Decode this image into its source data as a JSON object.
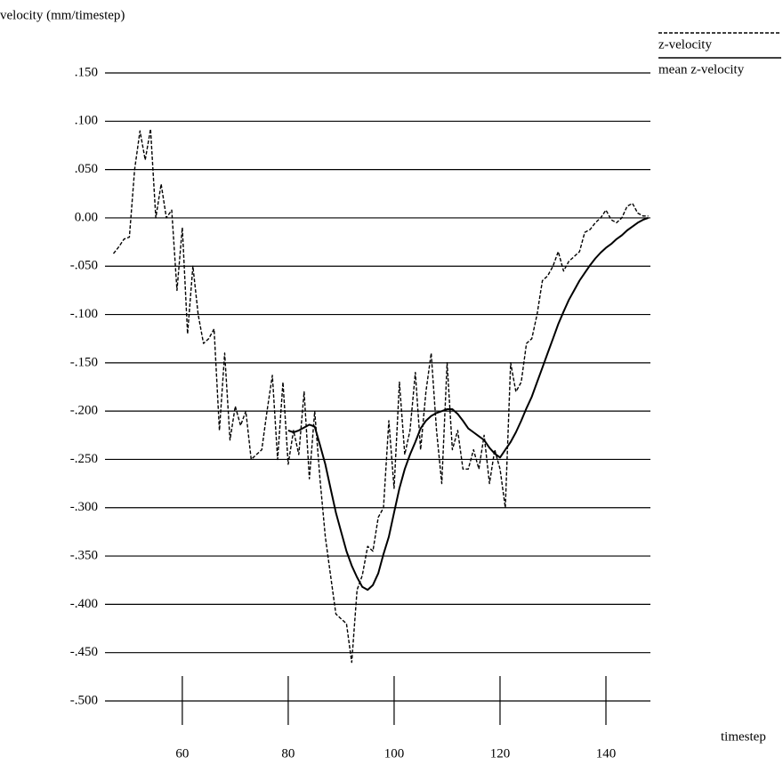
{
  "chart_data": {
    "type": "line",
    "y_label": "velocity (mm/timestep)",
    "x_label": "timestep",
    "legend": "upper right",
    "grid": true,
    "xlim": [
      45.4,
      148.4
    ],
    "ylim": [
      -0.5,
      0.15
    ],
    "xticks": [
      60,
      80,
      100,
      120,
      140
    ],
    "yticks": [
      {
        "value": 0.15,
        "label": ".150"
      },
      {
        "value": 0.1,
        "label": ".100"
      },
      {
        "value": 0.05,
        "label": ".050"
      },
      {
        "value": 0,
        "label": "0.00"
      },
      {
        "value": -0.05,
        "label": "-.050"
      },
      {
        "value": -0.1,
        "label": "-.100"
      },
      {
        "value": -0.15,
        "label": "-.150"
      },
      {
        "value": -0.2,
        "label": "-.200"
      },
      {
        "value": -0.25,
        "label": "-.250"
      },
      {
        "value": -0.3,
        "label": "-.300"
      },
      {
        "value": -0.35,
        "label": "-.350"
      },
      {
        "value": -0.4,
        "label": "-.400"
      },
      {
        "value": -0.45,
        "label": "-.450"
      },
      {
        "value": -0.5,
        "label": "-.500"
      }
    ],
    "x": [
      47,
      48,
      49,
      50,
      51,
      52,
      53,
      54,
      55,
      56,
      57,
      58,
      59,
      60,
      61,
      62,
      63,
      64,
      65,
      66,
      67,
      68,
      69,
      70,
      71,
      72,
      73,
      74,
      75,
      76,
      77,
      78,
      79,
      80,
      81,
      82,
      83,
      84,
      85,
      86,
      87,
      88,
      89,
      90,
      91,
      92,
      93,
      94,
      95,
      96,
      97,
      98,
      99,
      100,
      101,
      102,
      103,
      104,
      105,
      106,
      107,
      108,
      109,
      110,
      111,
      112,
      113,
      114,
      115,
      116,
      117,
      118,
      119,
      120,
      121,
      122,
      123,
      124,
      125,
      126,
      127,
      128,
      129,
      130,
      131,
      132,
      133,
      134,
      135,
      136,
      137,
      138,
      139,
      140,
      141,
      142,
      143,
      144,
      145,
      146,
      147,
      148
    ],
    "series": [
      {
        "name": "z-velocity",
        "color": "#000000",
        "linestyle": "dashed",
        "values": [
          -0.037,
          -0.03,
          -0.022,
          -0.02,
          0.05,
          0.09,
          0.06,
          0.092,
          0.0,
          0.035,
          0.0,
          0.008,
          -0.075,
          -0.01,
          -0.12,
          -0.05,
          -0.1,
          -0.13,
          -0.125,
          -0.115,
          -0.22,
          -0.14,
          -0.23,
          -0.195,
          -0.215,
          -0.2,
          -0.25,
          -0.245,
          -0.24,
          -0.2,
          -0.163,
          -0.25,
          -0.17,
          -0.255,
          -0.22,
          -0.245,
          -0.18,
          -0.27,
          -0.2,
          -0.27,
          -0.33,
          -0.37,
          -0.41,
          -0.415,
          -0.42,
          -0.46,
          -0.385,
          -0.37,
          -0.34,
          -0.345,
          -0.31,
          -0.3,
          -0.21,
          -0.28,
          -0.17,
          -0.245,
          -0.22,
          -0.16,
          -0.24,
          -0.18,
          -0.14,
          -0.22,
          -0.275,
          -0.15,
          -0.24,
          -0.22,
          -0.26,
          -0.26,
          -0.24,
          -0.26,
          -0.225,
          -0.275,
          -0.24,
          -0.26,
          -0.3,
          -0.15,
          -0.18,
          -0.17,
          -0.13,
          -0.125,
          -0.1,
          -0.065,
          -0.06,
          -0.05,
          -0.035,
          -0.055,
          -0.045,
          -0.04,
          -0.035,
          -0.015,
          -0.012,
          -0.005,
          0.0,
          0.008,
          -0.002,
          -0.005,
          0.0,
          0.012,
          0.015,
          0.005,
          0.002,
          0.002
        ]
      },
      {
        "name": "mean z-velocity",
        "color": "#000000",
        "linestyle": "solid",
        "values": [
          null,
          null,
          null,
          null,
          null,
          null,
          null,
          null,
          null,
          null,
          null,
          null,
          null,
          null,
          null,
          null,
          null,
          null,
          null,
          null,
          null,
          null,
          null,
          null,
          null,
          null,
          null,
          null,
          null,
          null,
          null,
          null,
          null,
          -0.22,
          -0.222,
          -0.22,
          -0.217,
          -0.214,
          -0.216,
          -0.235,
          -0.255,
          -0.28,
          -0.305,
          -0.325,
          -0.345,
          -0.36,
          -0.372,
          -0.382,
          -0.385,
          -0.38,
          -0.368,
          -0.348,
          -0.33,
          -0.305,
          -0.28,
          -0.26,
          -0.245,
          -0.232,
          -0.218,
          -0.21,
          -0.205,
          -0.202,
          -0.2,
          -0.198,
          -0.198,
          -0.203,
          -0.21,
          -0.218,
          -0.222,
          -0.226,
          -0.23,
          -0.238,
          -0.244,
          -0.248,
          -0.24,
          -0.232,
          -0.222,
          -0.21,
          -0.197,
          -0.185,
          -0.17,
          -0.155,
          -0.14,
          -0.125,
          -0.11,
          -0.097,
          -0.085,
          -0.075,
          -0.065,
          -0.057,
          -0.049,
          -0.042,
          -0.036,
          -0.031,
          -0.027,
          -0.022,
          -0.018,
          -0.013,
          -0.009,
          -0.005,
          -0.002,
          0.0
        ]
      }
    ]
  }
}
